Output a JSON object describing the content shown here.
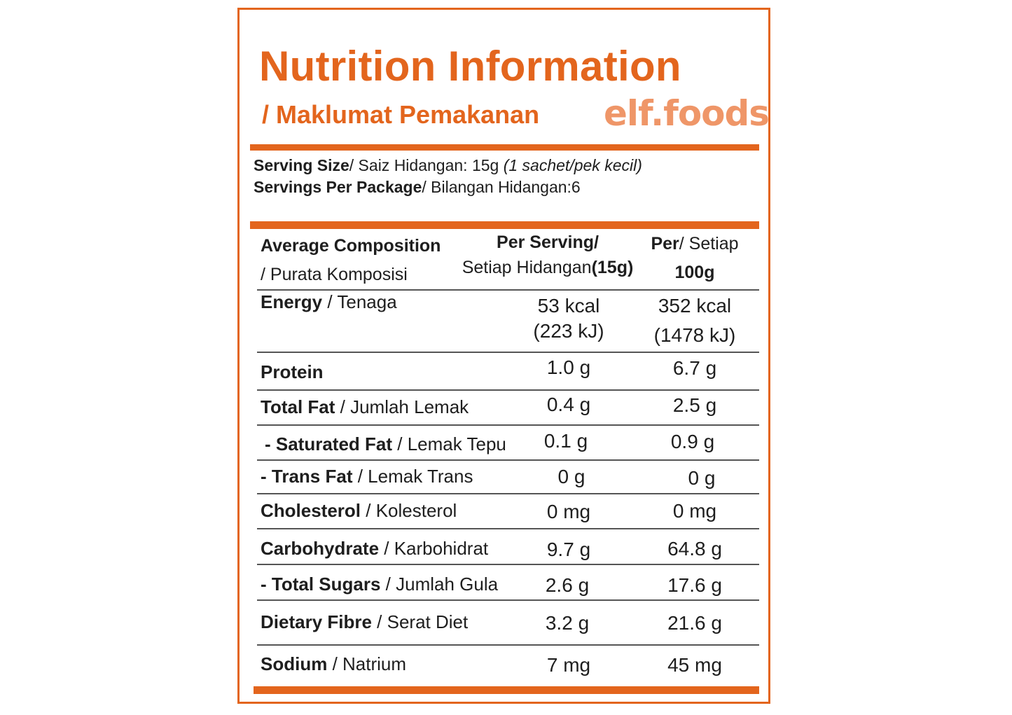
{
  "title": "Nutrition Information",
  "subtitle": "/ Maklumat Pemakanan",
  "brand": "elf.foods",
  "serving": {
    "size_label": "Serving Size",
    "size_rest": "/ Saiz Hidangan: 15g ",
    "size_note": "(1 sachet/pek kecil)",
    "per_package_label": "Servings Per Package",
    "per_package_rest": "/ Bilangan Hidangan:6"
  },
  "header": {
    "col0_line1": "Average Composition",
    "col0_line2": "/ Purata Komposisi",
    "col1_line1": "Per Serving/",
    "col1_line2_a": "Setiap Hidangan",
    "col1_line2_b": "(15g)",
    "col2_line1_a": "Per",
    "col2_line1_b": "/ Setiap",
    "col2_line2": "100g"
  },
  "rows": [
    {
      "en": "Energy",
      "ms": " / Tenaga",
      "serving": "53 kcal",
      "serving2": "(223 kJ)",
      "per100": "352 kcal",
      "per100_2": "(1478 kJ)"
    },
    {
      "en": "Protein",
      "ms": "",
      "serving": "1.0 g",
      "per100": "6.7 g"
    },
    {
      "en": "Total Fat",
      "ms": " / Jumlah Lemak",
      "serving": "0.4 g",
      "per100": "2.5 g"
    },
    {
      "en": "- Saturated Fat",
      "ms": " / Lemak Tepu",
      "serving": "0.1 g",
      "per100": "0.9 g"
    },
    {
      "en": "- Trans Fat",
      "ms": " / Lemak Trans",
      "serving": "0 g",
      "per100": "0 g"
    },
    {
      "en": "Cholesterol",
      "ms": " / Kolesterol",
      "serving": "0 mg",
      "per100": "0 mg"
    },
    {
      "en": "Carbohydrate",
      "ms": " / Karbohidrat",
      "serving": "9.7 g",
      "per100": "64.8 g"
    },
    {
      "en": "- Total Sugars",
      "ms": " / Jumlah Gula",
      "serving": "2.6 g",
      "per100": "17.6 g"
    },
    {
      "en": "Dietary Fibre",
      "ms": " / Serat Diet",
      "serving": "3.2 g",
      "per100": "21.6 g"
    },
    {
      "en": "Sodium",
      "ms": " / Natrium",
      "serving": "7 mg",
      "per100": "45 mg"
    }
  ],
  "colors": {
    "accent": "#e3651d",
    "brand": "#ef9668",
    "text": "#1e1e1e"
  }
}
